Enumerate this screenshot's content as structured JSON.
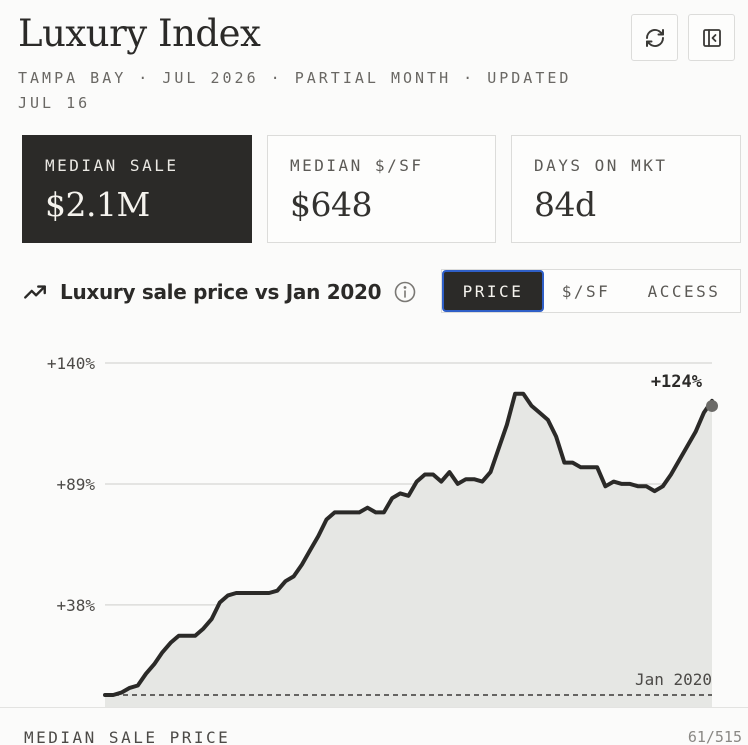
{
  "header": {
    "title": "Luxury Index",
    "subtitle": "TAMPA BAY · JUL 2026 · PARTIAL MONTH · UPDATED JUL 16",
    "refresh_icon": "refresh-icon",
    "collapse_icon": "sidebar-collapse-icon"
  },
  "stats": [
    {
      "label": "MEDIAN SALE",
      "value": "$2.1M"
    },
    {
      "label": "MEDIAN $/SF",
      "value": "$648"
    },
    {
      "label": "DAYS ON MKT",
      "value": "84d"
    }
  ],
  "chart_header": {
    "title": "Luxury sale price vs Jan 2020",
    "trend_icon": "trending-up-icon",
    "info_icon": "info-icon",
    "tabs": [
      "PRICE",
      "$/SF",
      "ACCESS"
    ],
    "active_tab": "PRICE"
  },
  "chart_data": {
    "type": "area",
    "title": "Luxury sale price vs Jan 2020",
    "ylabel": "",
    "ylim": [
      0,
      140
    ],
    "yticks": [
      38,
      89,
      140
    ],
    "ytick_labels": [
      "+38%",
      "+89%",
      "+140%"
    ],
    "baseline_label": "Jan 2020",
    "end_label": "+124%",
    "unit": "% change vs Jan 2020",
    "values": [
      0,
      0,
      1,
      3,
      4,
      9,
      13,
      18,
      22,
      25,
      25,
      25,
      28,
      32,
      39,
      42,
      43,
      43,
      43,
      43,
      43,
      44,
      48,
      50,
      55,
      61,
      67,
      74,
      77,
      77,
      77,
      77,
      79,
      77,
      77,
      83,
      85,
      84,
      90,
      93,
      93,
      90,
      94,
      89,
      91,
      91,
      90,
      94,
      104,
      114,
      127,
      127,
      122,
      119,
      116,
      109,
      98,
      98,
      96,
      96,
      96,
      88,
      90,
      89,
      89,
      88,
      88,
      86,
      88,
      93,
      99,
      105,
      111,
      119,
      124
    ],
    "accent_color": "#2b2a28",
    "area_color": "#e6e7e4"
  },
  "footer": {
    "label": "MEDIAN SALE PRICE",
    "count": "61/515"
  }
}
